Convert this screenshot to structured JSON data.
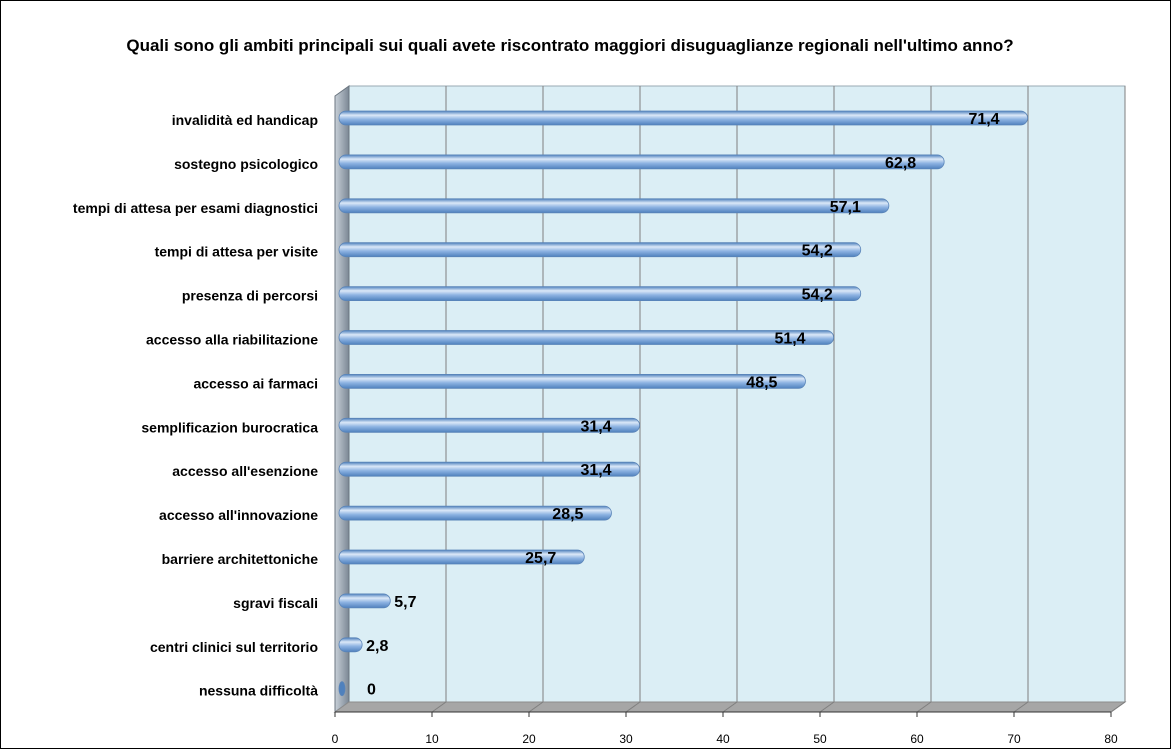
{
  "chart_data": {
    "type": "bar",
    "orientation": "horizontal",
    "title": "Quali sono gli ambiti principali sui quali avete riscontrato maggiori disuguaglianze regionali nell'ultimo anno?",
    "categories": [
      "invalidità ed handicap",
      "sostegno psicologico",
      "tempi di attesa per esami diagnostici",
      "tempi di attesa per visite",
      "presenza di percorsi",
      "accesso alla riabilitazione",
      "accesso ai farmaci",
      "semplificazion burocratica",
      "accesso all'esenzione",
      "accesso all'innovazione",
      "barriere architettoniche",
      "sgravi fiscali",
      "centri clinici sul territorio",
      "nessuna difficoltà"
    ],
    "values": [
      71.4,
      62.8,
      57.1,
      54.2,
      54.2,
      51.4,
      48.5,
      31.4,
      31.4,
      28.5,
      25.7,
      5.7,
      2.8,
      0
    ],
    "value_labels": [
      "71,4",
      "62,8",
      "57,1",
      "54,2",
      "54,2",
      "51,4",
      "48,5",
      "31,4",
      "31,4",
      "28,5",
      "25,7",
      "5,7",
      "2,8",
      "0"
    ],
    "xlim": [
      0,
      80
    ],
    "xticks": [
      0,
      10,
      20,
      30,
      40,
      50,
      60,
      70,
      80
    ],
    "grid": true,
    "legend": "none",
    "colors": {
      "bar": "#8db3e2",
      "bar_light": "#dbe8f8",
      "bar_dark": "#4f81bd",
      "plot_bg": "#dbeef5",
      "gridline": "#7f7f7f",
      "side_wall": "#7b8794",
      "floor": "#a6a6a6"
    }
  }
}
